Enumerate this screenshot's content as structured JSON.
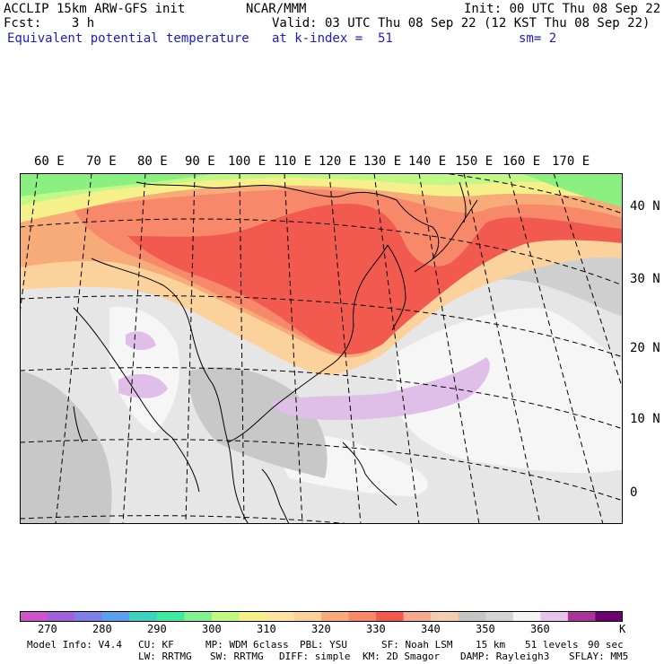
{
  "header": {
    "model": "ACCLIP 15km ARW-GFS init",
    "org": "NCAR/MMM",
    "init": "Init: 00 UTC Thu 08 Sep 22",
    "fcst": "Fcst:    3 h",
    "valid": "Valid: 03 UTC Thu 08 Sep 22 (12 KST Thu 08 Sep 22)",
    "field": "Equivalent potential temperature",
    "level": "at k-index =  51",
    "smooth": "sm= 2"
  },
  "map": {
    "lon_labels": [
      "60 E",
      "70 E",
      "80 E",
      "90 E",
      "100 E",
      "110 E",
      "120 E",
      "130 E",
      "140 E",
      "150 E",
      "160 E",
      "170 E"
    ],
    "lat_labels": [
      "40 N",
      "30 N",
      "20 N",
      "10 N",
      "0"
    ],
    "fill_colors": {
      "land_base": "#c8c4c0",
      "ocean_base": "#cfcfcf",
      "green": "#8cf080",
      "lightgreen": "#c2f888",
      "yellow": "#f6f08a",
      "peach": "#fcd29c",
      "orange": "#f7ab78",
      "salmon": "#f7896a",
      "red": "#f25a50",
      "gray": "#c8c8c8",
      "lightgray": "#e6e6e6",
      "white": "#f6f6f6",
      "lavender": "#dfbfe8"
    }
  },
  "colorbar": {
    "colors": [
      "#cc55cc",
      "#a060d8",
      "#7f7fe8",
      "#5aa0ee",
      "#40d0c0",
      "#40e8a0",
      "#80f090",
      "#c0f880",
      "#f6f08a",
      "#fce4a0",
      "#fcd29c",
      "#f7ab78",
      "#f7896a",
      "#f25a50",
      "#f7a890",
      "#f4ccb0",
      "#c8c4c0",
      "#d4d4d4",
      "#f4f4f4",
      "#e4c4e8",
      "#aa3399",
      "#6a0070"
    ],
    "labels": [
      "270",
      "280",
      "290",
      "300",
      "310",
      "320",
      "330",
      "340",
      "350",
      "360"
    ],
    "unit": "K"
  },
  "footer": {
    "line1": [
      "Model Info: V4.4",
      "CU: KF",
      "MP: WDM 6class",
      "PBL: YSU",
      "SF: Noah LSM",
      "15 km",
      "51 levels",
      "90 sec"
    ],
    "line2": [
      "LW: RRTMG",
      "SW: RRTMG",
      "DIFF: simple",
      "KM: 2D Smagor",
      "DAMP: Rayleigh3",
      "SFLAY: MM5"
    ]
  }
}
